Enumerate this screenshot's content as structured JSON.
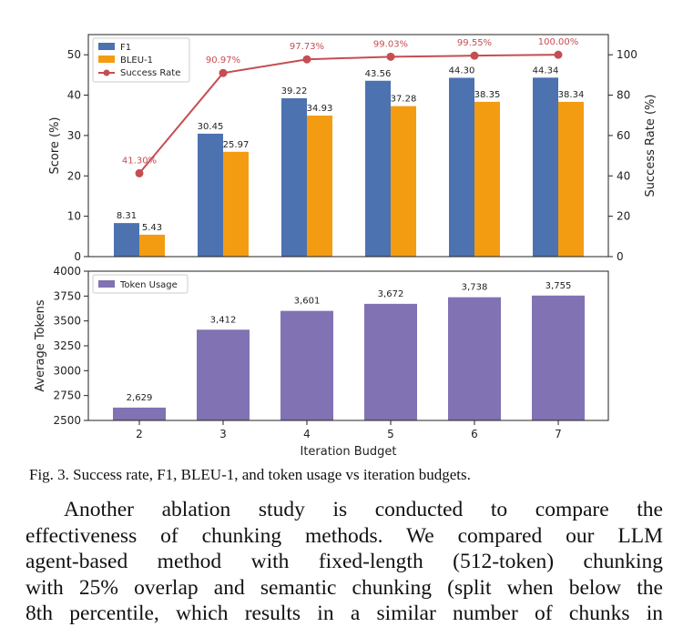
{
  "chart_data": [
    {
      "type": "bar",
      "categories": [
        "2",
        "3",
        "4",
        "5",
        "6",
        "7"
      ],
      "series": [
        {
          "name": "F1",
          "color": "#4c72b0",
          "values": [
            8.31,
            30.45,
            39.22,
            43.56,
            44.3,
            44.34
          ],
          "labels": [
            "8.31",
            "30.45",
            "39.22",
            "43.56",
            "44.30",
            "44.34"
          ]
        },
        {
          "name": "BLEU-1",
          "color": "#f39c12",
          "values": [
            5.43,
            25.97,
            34.93,
            37.28,
            38.35,
            38.34
          ],
          "labels": [
            "5.43",
            "25.97",
            "34.93",
            "37.28",
            "38.35",
            "38.34"
          ]
        }
      ],
      "line_series": {
        "name": "Success Rate",
        "color": "#c44e52",
        "axis": "right",
        "values": [
          41.3,
          90.97,
          97.73,
          99.03,
          99.55,
          100.0
        ],
        "labels": [
          "41.30%",
          "90.97%",
          "97.73%",
          "99.03%",
          "99.55%",
          "100.00%"
        ]
      },
      "ylabel": "Score (%)",
      "ylim": [
        0,
        55
      ],
      "yticks": [
        0,
        10,
        20,
        30,
        40,
        50
      ],
      "y2label": "Success Rate (%)",
      "y2lim": [
        0,
        110
      ],
      "y2ticks": [
        0,
        20,
        40,
        60,
        80,
        100
      ],
      "legend": "top-left",
      "grid": false
    },
    {
      "type": "bar",
      "categories": [
        "2",
        "3",
        "4",
        "5",
        "6",
        "7"
      ],
      "series": [
        {
          "name": "Token Usage",
          "color": "#8172b3",
          "values": [
            2629,
            3412,
            3601,
            3672,
            3738,
            3755
          ],
          "labels": [
            "2,629",
            "3,412",
            "3,601",
            "3,672",
            "3,738",
            "3,755"
          ]
        }
      ],
      "xlabel": "Iteration Budget",
      "ylabel": "Average Tokens",
      "ylim": [
        2500,
        4000
      ],
      "yticks": [
        2500,
        2750,
        3000,
        3250,
        3500,
        3750,
        4000
      ],
      "legend": "top-left",
      "grid": false
    }
  ],
  "caption": "Fig. 3.   Success rate, F1, BLEU-1, and token usage vs iteration budgets.",
  "body_lines": [
    "Another ablation study is conducted to compare the",
    "effectiveness of chunking methods. We compared our LLM",
    "agent-based method with fixed-length (512-token) chunking",
    "with 25% overlap and semantic chunking (split when below the",
    "8th percentile, which results in a similar number of chunks in"
  ]
}
